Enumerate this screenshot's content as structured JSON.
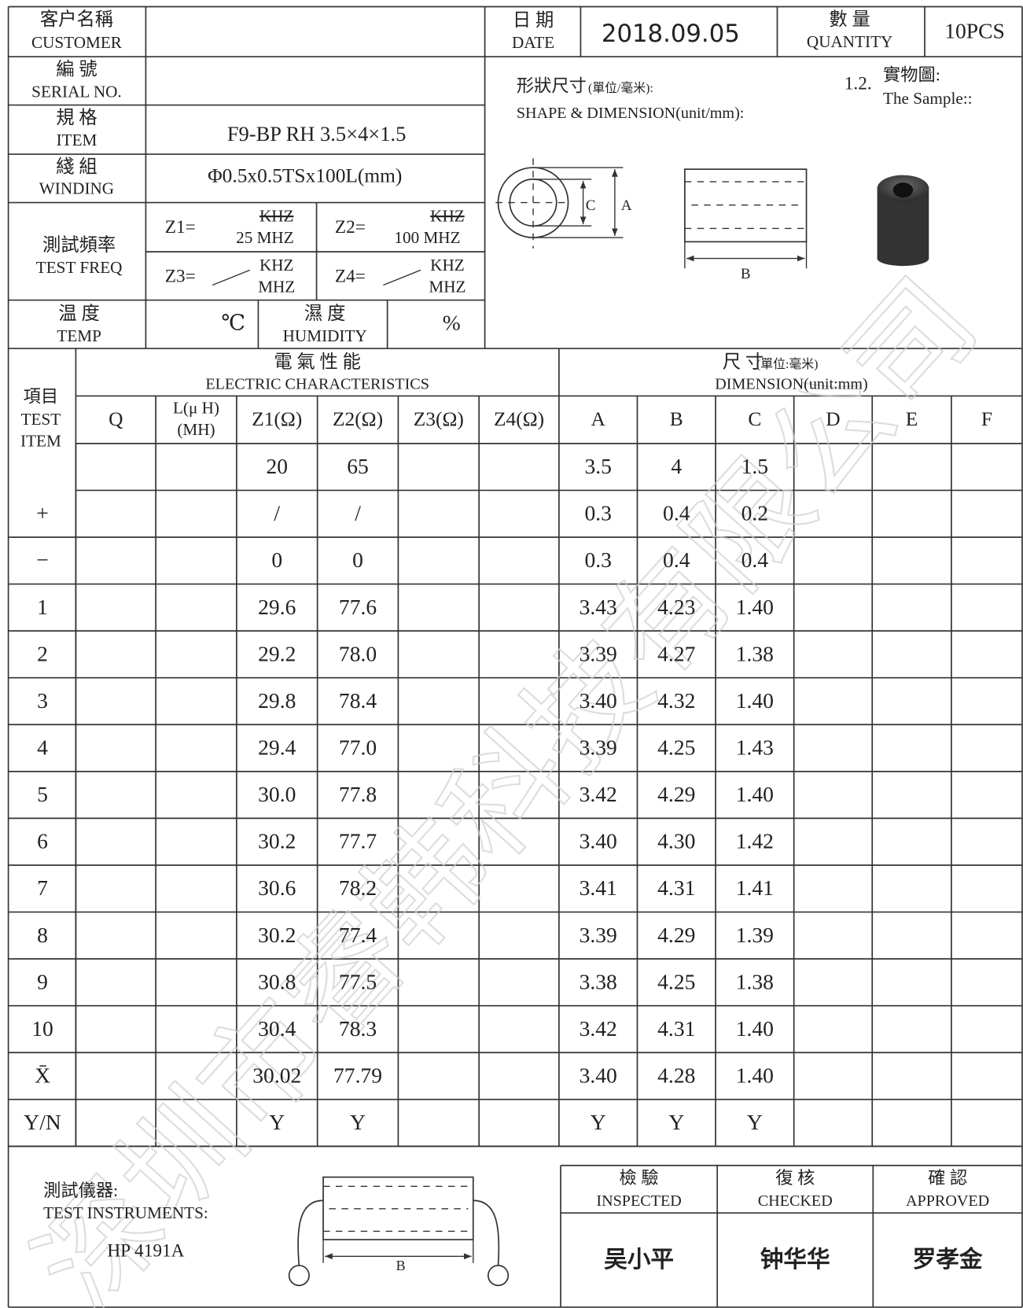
{
  "watermark": "深圳市睿韩科技有限公司",
  "header": {
    "customer": {
      "zh": "客户名稱",
      "en": "CUSTOMER"
    },
    "date": {
      "zh": "日 期",
      "en": "DATE",
      "value": "2018.09.05"
    },
    "quantity": {
      "zh": "數 量",
      "en": "QUANTITY",
      "value": "10PCS"
    },
    "serial": {
      "zh": "編 號",
      "en": "SERIAL NO."
    },
    "item": {
      "zh": "規 格",
      "en": "ITEM",
      "value": "F9-BP RH 3.5×4×1.5"
    },
    "winding": {
      "zh": "綫 組",
      "en": "WINDING",
      "value": "Φ0.5x0.5TSx100L(mm)"
    },
    "test_freq": {
      "zh": "測試頻率",
      "en": "TEST FREQ",
      "z1": {
        "label": "Z1=",
        "struck": "KHZ",
        "value": "25 MHZ"
      },
      "z2": {
        "label": "Z2=",
        "struck": "KHZ",
        "value": "100 MHZ"
      },
      "z3": {
        "label": "Z3=",
        "unit_top": "KHZ",
        "unit_bottom": "MHZ"
      },
      "z4": {
        "label": "Z4=",
        "unit_top": "KHZ",
        "unit_bottom": "MHZ"
      }
    },
    "temp": {
      "zh": "温 度",
      "en": "TEMP",
      "unit": "℃"
    },
    "humidity": {
      "zh": "濕 度",
      "en": "HUMIDITY",
      "unit": "%"
    },
    "shape": {
      "zh": "形狀尺寸",
      "zh_note": "(單位/毫米):",
      "en": "SHAPE & DIMENSION(unit/mm):",
      "labels": [
        "C",
        "A",
        "B"
      ]
    },
    "sample": {
      "number": "1.2.",
      "zh": "實物圖:",
      "en": "The Sample::"
    }
  },
  "table": {
    "item_header": {
      "zh": "項目",
      "en": [
        "TEST",
        "ITEM"
      ]
    },
    "electric": {
      "zh": "電 氣 性 能",
      "en": "ELECTRIC CHARACTERISTICS"
    },
    "dimension": {
      "zh": "尺 寸",
      "zh_note": "(單位:毫米)",
      "en": "DIMENSION(unit:mm)"
    },
    "columns": [
      [
        "Q"
      ],
      [
        "L(μ H)",
        "(MH)"
      ],
      [
        "Z1(Ω)"
      ],
      [
        "Z2(Ω)"
      ],
      [
        "Z3(Ω)"
      ],
      [
        "Z4(Ω)"
      ],
      [
        "A"
      ],
      [
        "B"
      ],
      [
        "C"
      ],
      [
        "D"
      ],
      [
        "E"
      ],
      [
        "F"
      ]
    ],
    "rows": [
      [
        null,
        null,
        null,
        "20",
        "65",
        null,
        null,
        "3.5",
        "4",
        "1.5",
        null,
        null,
        null
      ],
      [
        "+",
        null,
        null,
        "/",
        "/",
        null,
        null,
        "0.3",
        "0.4",
        "0.2",
        null,
        null,
        null
      ],
      [
        "−",
        null,
        null,
        "0",
        "0",
        null,
        null,
        "0.3",
        "0.4",
        "0.4",
        null,
        null,
        null
      ],
      [
        "1",
        null,
        null,
        "29.6",
        "77.6",
        null,
        null,
        "3.43",
        "4.23",
        "1.40",
        null,
        null,
        null
      ],
      [
        "2",
        null,
        null,
        "29.2",
        "78.0",
        null,
        null,
        "3.39",
        "4.27",
        "1.38",
        null,
        null,
        null
      ],
      [
        "3",
        null,
        null,
        "29.8",
        "78.4",
        null,
        null,
        "3.40",
        "4.32",
        "1.40",
        null,
        null,
        null
      ],
      [
        "4",
        null,
        null,
        "29.4",
        "77.0",
        null,
        null,
        "3.39",
        "4.25",
        "1.43",
        null,
        null,
        null
      ],
      [
        "5",
        null,
        null,
        "30.0",
        "77.8",
        null,
        null,
        "3.42",
        "4.29",
        "1.40",
        null,
        null,
        null
      ],
      [
        "6",
        null,
        null,
        "30.2",
        "77.7",
        null,
        null,
        "3.40",
        "4.30",
        "1.42",
        null,
        null,
        null
      ],
      [
        "7",
        null,
        null,
        "30.6",
        "78.2",
        null,
        null,
        "3.41",
        "4.31",
        "1.41",
        null,
        null,
        null
      ],
      [
        "8",
        null,
        null,
        "30.2",
        "77.4",
        null,
        null,
        "3.39",
        "4.29",
        "1.39",
        null,
        null,
        null
      ],
      [
        "9",
        null,
        null,
        "30.8",
        "77.5",
        null,
        null,
        "3.38",
        "4.25",
        "1.38",
        null,
        null,
        null
      ],
      [
        "10",
        null,
        null,
        "30.4",
        "78.3",
        null,
        null,
        "3.42",
        "4.31",
        "1.40",
        null,
        null,
        null
      ],
      [
        "X̄",
        null,
        null,
        "30.02",
        "77.79",
        null,
        null,
        "3.40",
        "4.28",
        "1.40",
        null,
        null,
        null
      ],
      [
        "Y/N",
        null,
        null,
        "Y",
        "Y",
        null,
        null,
        "Y",
        "Y",
        "Y",
        null,
        null,
        null
      ]
    ]
  },
  "footer": {
    "instruments": {
      "zh": "測試儀器:",
      "en": "TEST INSTRUMENTS:",
      "value": "HP 4191A"
    },
    "diagram_label": "B",
    "signoffs": [
      {
        "zh": "檢 驗",
        "en": "INSPECTED",
        "name": "吴小平"
      },
      {
        "zh": "復 核",
        "en": "CHECKED",
        "name": "钟华华"
      },
      {
        "zh": "確 認",
        "en": "APPROVED",
        "name": "罗孝金"
      }
    ]
  }
}
